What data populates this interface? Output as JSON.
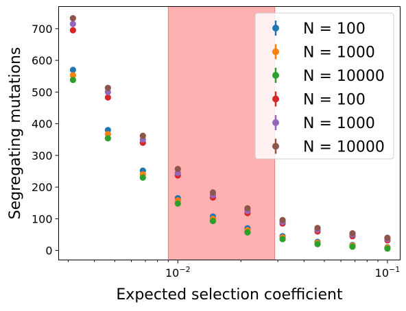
{
  "chart_data": {
    "type": "scatter",
    "xlabel": "Expected selection coefficient",
    "ylabel": "Segregating mutations",
    "xscale": "log",
    "xlim": [
      0.0027,
      0.115
    ],
    "ylim": [
      -30,
      770
    ],
    "x_tick_labels": [
      {
        "x": 0.01,
        "base": "10",
        "exp": "−2"
      },
      {
        "x": 0.1,
        "base": "10",
        "exp": "−1"
      }
    ],
    "y_ticks": [
      0,
      100,
      200,
      300,
      400,
      500,
      600,
      700
    ],
    "highlight_span": {
      "x": [
        0.009,
        0.029
      ],
      "color": "#ffb0b0"
    },
    "x": [
      0.00316,
      0.00464,
      0.00681,
      0.01,
      0.0147,
      0.0215,
      0.0316,
      0.0464,
      0.0681,
      0.1
    ],
    "series": [
      {
        "name": "N = 100",
        "color": "#1f77b4",
        "values": [
          570,
          380,
          252,
          165,
          107,
          70,
          45,
          27,
          17,
          10
        ]
      },
      {
        "name": "N = 1000",
        "color": "#ff7f0e",
        "values": [
          553,
          367,
          240,
          158,
          100,
          64,
          41,
          24,
          15,
          9
        ]
      },
      {
        "name": "N = 10000",
        "color": "#2ca02c",
        "values": [
          538,
          354,
          230,
          148,
          93,
          57,
          36,
          20,
          12,
          6
        ]
      },
      {
        "name": "N = 100",
        "color": "#d62728",
        "values": [
          695,
          483,
          340,
          237,
          167,
          118,
          85,
          60,
          45,
          32
        ]
      },
      {
        "name": "N = 1000",
        "color": "#9467bd",
        "values": [
          715,
          500,
          350,
          245,
          175,
          125,
          90,
          66,
          50,
          36
        ]
      },
      {
        "name": "N = 10000",
        "color": "#8c564b",
        "values": [
          733,
          513,
          362,
          257,
          183,
          133,
          96,
          71,
          54,
          40
        ]
      }
    ],
    "legend": {
      "position": "top-right"
    },
    "grid": false
  }
}
